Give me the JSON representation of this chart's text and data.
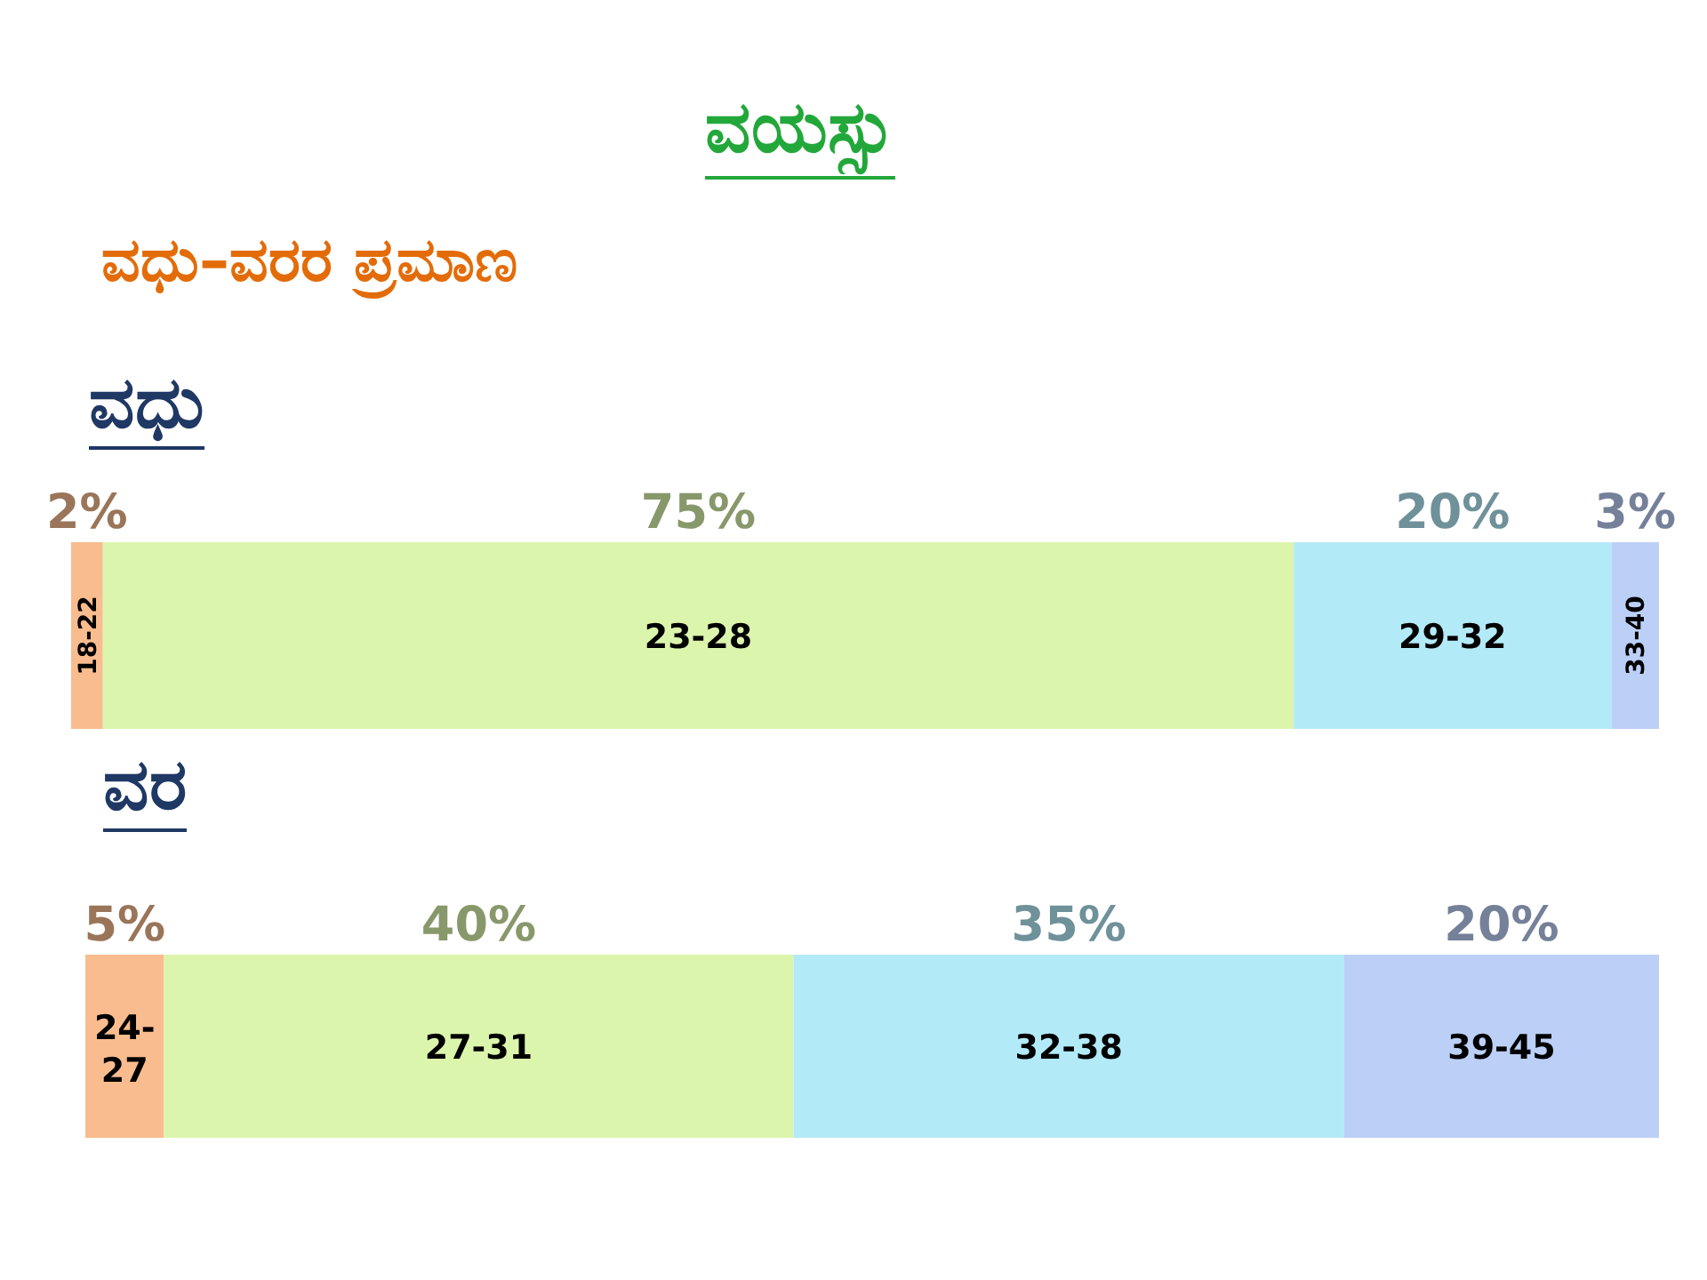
{
  "chart_data": [
    {
      "type": "bar",
      "orientation": "horizontal",
      "stacked": true,
      "title": "ವಯಸ್ಸು",
      "subtitle": "ವಧು–ವರರ ಪ್ರಮಾಣ",
      "ylabel": "ವಧು",
      "categories": [
        null
      ],
      "legend": false,
      "series": [
        {
          "name": "18-22",
          "color": "#f9bc8f",
          "values": [
            2
          ],
          "value_labels": [
            "2%"
          ]
        },
        {
          "name": "23-28",
          "color": "#dcf5ad",
          "values": [
            75
          ],
          "value_labels": [
            "75%"
          ]
        },
        {
          "name": "29-32",
          "color": "#b3eaf8",
          "values": [
            20
          ],
          "value_labels": [
            "20%"
          ]
        },
        {
          "name": "33-40",
          "color": "#bccff6",
          "values": [
            3
          ],
          "value_labels": [
            "3%"
          ]
        }
      ]
    },
    {
      "type": "bar",
      "orientation": "horizontal",
      "stacked": true,
      "ylabel": "ವರ",
      "categories": [
        null
      ],
      "legend": false,
      "series": [
        {
          "name": "24-27",
          "color": "#f9bc8f",
          "values": [
            5
          ],
          "value_labels": [
            "5%"
          ]
        },
        {
          "name": "27-31",
          "color": "#dcf5ad",
          "values": [
            40
          ],
          "value_labels": [
            "40%"
          ]
        },
        {
          "name": "32-38",
          "color": "#b3eaf8",
          "values": [
            35
          ],
          "value_labels": [
            "35%"
          ]
        },
        {
          "name": "39-45",
          "color": "#bccff6",
          "values": [
            20
          ],
          "value_labels": [
            "20%"
          ]
        }
      ]
    }
  ]
}
